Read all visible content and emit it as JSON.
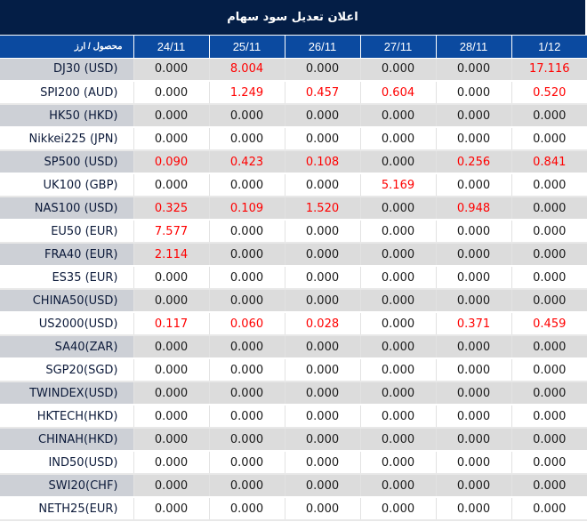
{
  "title": "اعلان تعدیل سود سهام",
  "header": {
    "product_label": "محصول / ارز",
    "dates": [
      "24/11",
      "25/11",
      "26/11",
      "27/11",
      "28/11",
      "1/12"
    ]
  },
  "colors": {
    "title_bg": "#041e46",
    "header_bg": "#0b4aa0",
    "highlight_value": "#ff0000",
    "row_stripe": "#dcdcdc"
  },
  "rows": [
    {
      "product": "DJ30 (USD)",
      "values": [
        "0.000",
        "8.004",
        "0.000",
        "0.000",
        "0.000",
        "17.116"
      ]
    },
    {
      "product": "SPI200 (AUD)",
      "values": [
        "0.000",
        "1.249",
        "0.457",
        "0.604",
        "0.000",
        "0.520"
      ]
    },
    {
      "product": "HK50 (HKD)",
      "values": [
        "0.000",
        "0.000",
        "0.000",
        "0.000",
        "0.000",
        "0.000"
      ]
    },
    {
      "product": "Nikkei225 (JPN)",
      "values": [
        "0.000",
        "0.000",
        "0.000",
        "0.000",
        "0.000",
        "0.000"
      ]
    },
    {
      "product": "SP500 (USD)",
      "values": [
        "0.090",
        "0.423",
        "0.108",
        "0.000",
        "0.256",
        "0.841"
      ]
    },
    {
      "product": "UK100 (GBP)",
      "values": [
        "0.000",
        "0.000",
        "0.000",
        "5.169",
        "0.000",
        "0.000"
      ]
    },
    {
      "product": "NAS100 (USD)",
      "values": [
        "0.325",
        "0.109",
        "1.520",
        "0.000",
        "0.948",
        "0.000"
      ]
    },
    {
      "product": "EU50 (EUR)",
      "values": [
        "7.577",
        "0.000",
        "0.000",
        "0.000",
        "0.000",
        "0.000"
      ]
    },
    {
      "product": "FRA40 (EUR)",
      "values": [
        "2.114",
        "0.000",
        "0.000",
        "0.000",
        "0.000",
        "0.000"
      ]
    },
    {
      "product": "ES35 (EUR)",
      "values": [
        "0.000",
        "0.000",
        "0.000",
        "0.000",
        "0.000",
        "0.000"
      ]
    },
    {
      "product": "CHINA50(USD)",
      "values": [
        "0.000",
        "0.000",
        "0.000",
        "0.000",
        "0.000",
        "0.000"
      ]
    },
    {
      "product": "US2000(USD)",
      "values": [
        "0.117",
        "0.060",
        "0.028",
        "0.000",
        "0.371",
        "0.459"
      ]
    },
    {
      "product": "SA40(ZAR)",
      "values": [
        "0.000",
        "0.000",
        "0.000",
        "0.000",
        "0.000",
        "0.000"
      ]
    },
    {
      "product": "SGP20(SGD)",
      "values": [
        "0.000",
        "0.000",
        "0.000",
        "0.000",
        "0.000",
        "0.000"
      ]
    },
    {
      "product": "TWINDEX(USD)",
      "values": [
        "0.000",
        "0.000",
        "0.000",
        "0.000",
        "0.000",
        "0.000"
      ]
    },
    {
      "product": "HKTECH(HKD)",
      "values": [
        "0.000",
        "0.000",
        "0.000",
        "0.000",
        "0.000",
        "0.000"
      ]
    },
    {
      "product": "CHINAH(HKD)",
      "values": [
        "0.000",
        "0.000",
        "0.000",
        "0.000",
        "0.000",
        "0.000"
      ]
    },
    {
      "product": "IND50(USD)",
      "values": [
        "0.000",
        "0.000",
        "0.000",
        "0.000",
        "0.000",
        "0.000"
      ]
    },
    {
      "product": "SWI20(CHF)",
      "values": [
        "0.000",
        "0.000",
        "0.000",
        "0.000",
        "0.000",
        "0.000"
      ]
    },
    {
      "product": "NETH25(EUR)",
      "values": [
        "0.000",
        "0.000",
        "0.000",
        "0.000",
        "0.000",
        "0.000"
      ]
    }
  ]
}
